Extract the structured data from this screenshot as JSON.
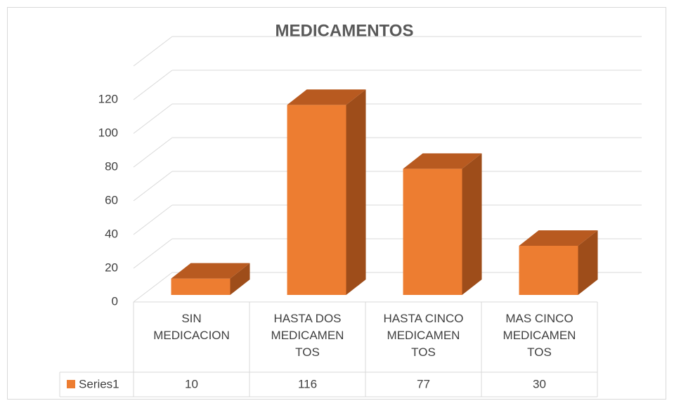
{
  "chart_data": {
    "type": "bar",
    "title": "MEDICAMENTOS",
    "categories": [
      "SIN MEDICACION",
      "HASTA DOS MEDICAMENTOS",
      "HASTA CINCO MEDICAMENTOS",
      "MAS CINCO MEDICAMENTOS"
    ],
    "series": [
      {
        "name": "Series1",
        "color": "#ED7D31",
        "values": [
          10,
          116,
          77,
          30
        ]
      }
    ],
    "ylim": [
      0,
      140
    ],
    "yticks": [
      0,
      20,
      40,
      60,
      80,
      100,
      120
    ],
    "grid": true,
    "data_table": true
  }
}
